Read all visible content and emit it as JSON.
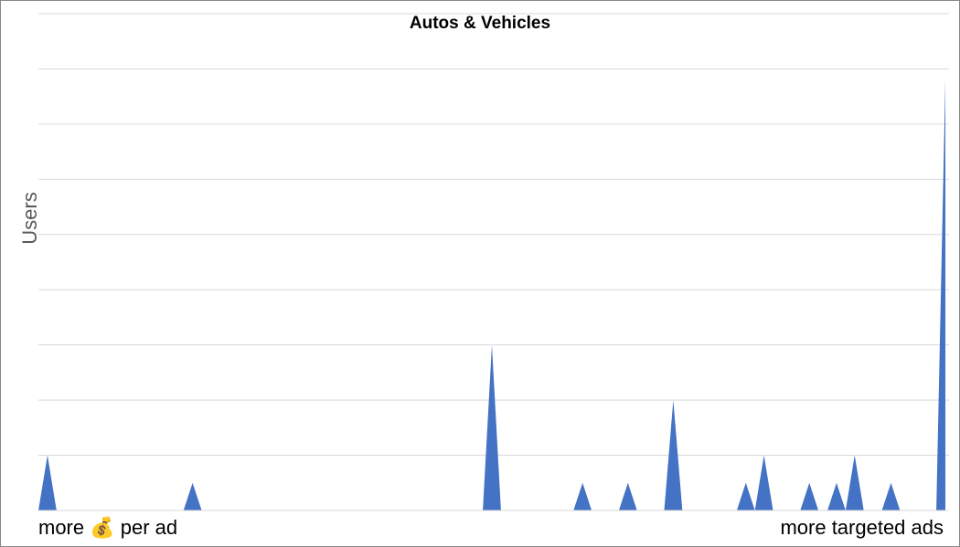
{
  "chart_data": {
    "type": "area",
    "title": "Autos & Vehicles",
    "y_label": "Users",
    "x_left_label": "more 💰 per ad",
    "x_right_label": "more targeted ads",
    "color": "#4472c4",
    "grid": true,
    "ylim": [
      0,
      9
    ],
    "yticks": [
      0,
      1,
      2,
      3,
      4,
      5,
      6,
      7,
      8,
      9
    ],
    "values": [
      0,
      1,
      0,
      0,
      0,
      0,
      0,
      0,
      0,
      0,
      0,
      0,
      0,
      0,
      0,
      0,
      0,
      0.5,
      0,
      0,
      0,
      0,
      0,
      0,
      0,
      0,
      0,
      0,
      0,
      0,
      0,
      0,
      0,
      0,
      0,
      0,
      0,
      0,
      0,
      0,
      0,
      0,
      0,
      0,
      0,
      0,
      0,
      0,
      0,
      0,
      3,
      0,
      0,
      0,
      0,
      0,
      0,
      0,
      0,
      0,
      0.5,
      0,
      0,
      0,
      0,
      0.5,
      0,
      0,
      0,
      0,
      2,
      0,
      0,
      0,
      0,
      0,
      0,
      0,
      0.5,
      0,
      1,
      0,
      0,
      0,
      0,
      0.5,
      0,
      0,
      0.5,
      0,
      1,
      0,
      0,
      0,
      0.5,
      0,
      0,
      0,
      0,
      0,
      7.8
    ]
  }
}
